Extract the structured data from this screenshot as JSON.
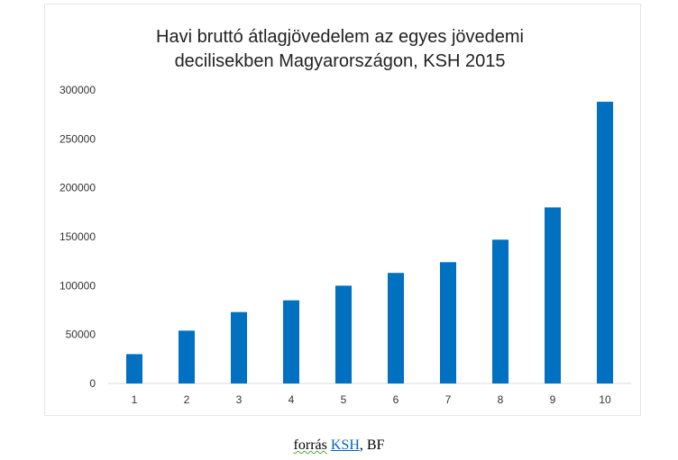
{
  "chart_data": {
    "type": "bar",
    "title": [
      "Havi bruttó átlagjövedelem az egyes jövedemi",
      "decilisekben Magyarországon, KSH 2015"
    ],
    "xlabel": "",
    "ylabel": "",
    "categories": [
      "1",
      "2",
      "3",
      "4",
      "5",
      "6",
      "7",
      "8",
      "9",
      "10"
    ],
    "values": [
      30000,
      54000,
      73000,
      85000,
      100000,
      113000,
      124000,
      147000,
      180000,
      288000
    ],
    "ylim": [
      0,
      300000
    ],
    "yticks": [
      "0",
      "50000",
      "100000",
      "150000",
      "200000",
      "250000",
      "300000"
    ],
    "grid": false,
    "bar_color": "#0070c0",
    "axis_color": "#d9d9d9"
  },
  "caption": {
    "prefix": "forrás",
    "link_text": "KSH",
    "suffix": ", BF"
  }
}
